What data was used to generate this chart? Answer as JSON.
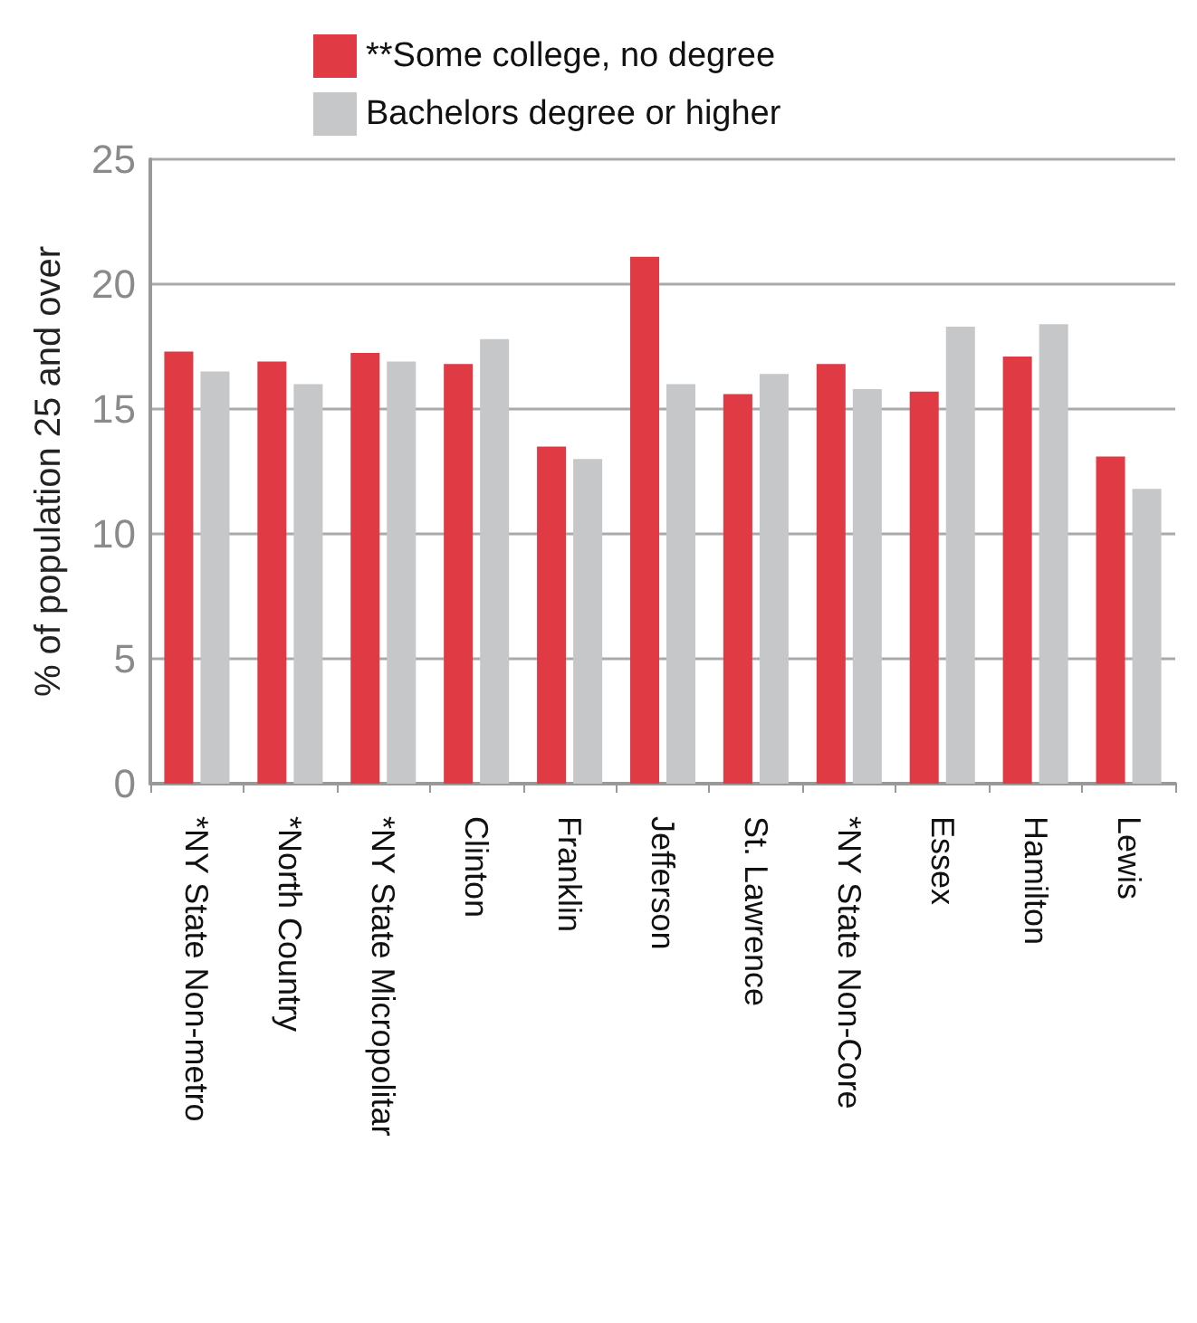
{
  "chart_data": {
    "type": "bar",
    "ylabel": "% of population 25 and over",
    "categories": [
      "*NY State Non-metro",
      "*North Country",
      "*NY State Micropolitar",
      "Clinton",
      "Franklin",
      "Jefferson",
      "St. Lawrence",
      "*NY State Non-Core",
      "Essex",
      "Hamilton",
      "Lewis"
    ],
    "series": [
      {
        "name": "**Some college, no degree",
        "color": "#e03a45",
        "values": [
          17.3,
          16.9,
          17.25,
          16.8,
          13.5,
          21.1,
          15.6,
          16.8,
          15.7,
          17.1,
          13.1
        ]
      },
      {
        "name": "Bachelors degree or higher",
        "color": "#c6c7c9",
        "values": [
          16.5,
          16.0,
          16.9,
          17.8,
          13.0,
          16.0,
          16.4,
          15.8,
          18.3,
          18.4,
          11.8
        ]
      }
    ],
    "ylim": [
      0,
      25
    ],
    "yticks": [
      0,
      5,
      10,
      15,
      20,
      25
    ],
    "grid": "y",
    "legend": "top"
  }
}
